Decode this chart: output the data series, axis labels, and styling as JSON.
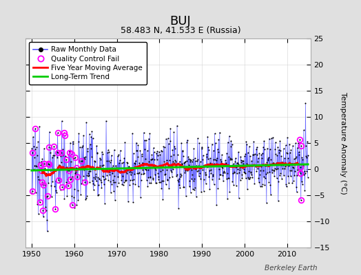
{
  "title": "BUJ",
  "subtitle": "58.483 N, 41.533 E (Russia)",
  "ylabel": "Temperature Anomaly (°C)",
  "watermark": "Berkeley Earth",
  "xlim": [
    1948.5,
    2015.5
  ],
  "ylim": [
    -15,
    25
  ],
  "yticks": [
    -15,
    -10,
    -5,
    0,
    5,
    10,
    15,
    20,
    25
  ],
  "xticks": [
    1950,
    1960,
    1970,
    1980,
    1990,
    2000,
    2010
  ],
  "fig_bg_color": "#e0e0e0",
  "plot_bg_color": "#ffffff",
  "raw_line_color": "#5555ff",
  "raw_marker_color": "#000000",
  "qc_fail_color": "#ff00ff",
  "moving_avg_color": "#ff0000",
  "trend_color": "#00cc00",
  "grid_color": "#cccccc",
  "title_fontsize": 13,
  "subtitle_fontsize": 9,
  "ylabel_fontsize": 8,
  "tick_labelsize": 8,
  "legend_fontsize": 7.5,
  "watermark_fontsize": 7.5,
  "seed": 12345,
  "n_years": 65,
  "start_year": 1950,
  "months_per_year": 12,
  "trend_slope": 0.018,
  "trend_intercept": -0.25
}
